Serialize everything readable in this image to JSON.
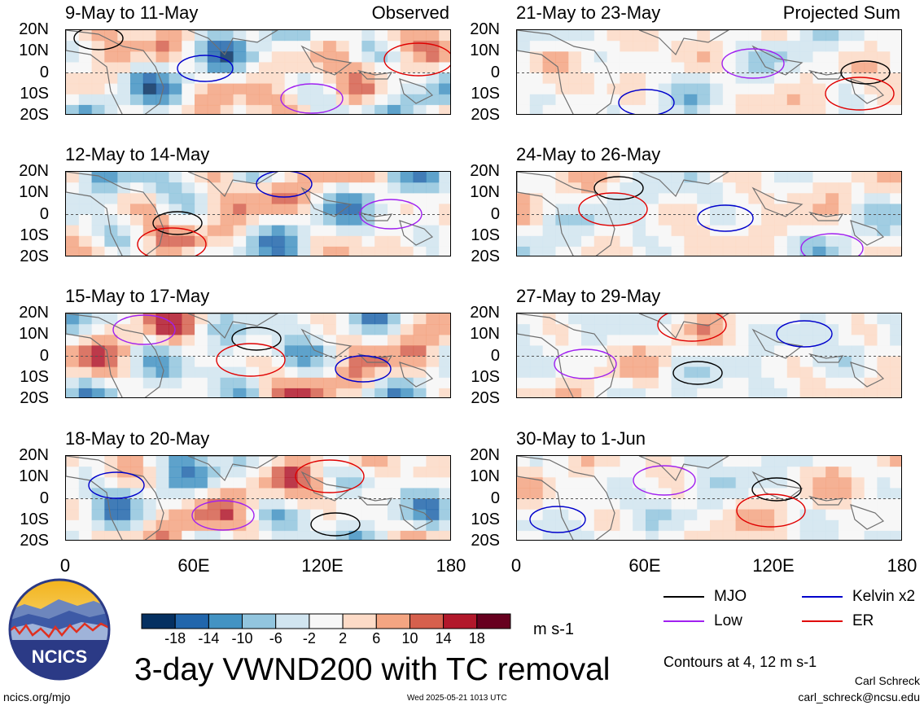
{
  "panels": [
    {
      "id": "obs1",
      "title": "9-May to 11-May",
      "corner_label": "Observed"
    },
    {
      "id": "obs2",
      "title": "12-May to 14-May",
      "corner_label": ""
    },
    {
      "id": "obs3",
      "title": "15-May to 17-May",
      "corner_label": ""
    },
    {
      "id": "obs4",
      "title": "18-May to 20-May",
      "corner_label": ""
    },
    {
      "id": "prj1",
      "title": "21-May to 23-May",
      "corner_label": "Projected Sum"
    },
    {
      "id": "prj2",
      "title": "24-May to 26-May",
      "corner_label": ""
    },
    {
      "id": "prj3",
      "title": "27-May to 29-May",
      "corner_label": ""
    },
    {
      "id": "prj4",
      "title": "30-May to 1-Jun",
      "corner_label": ""
    }
  ],
  "latitude_labels": [
    "20N",
    "10N",
    "0",
    "10S",
    "20S"
  ],
  "longitude_labels": [
    "0",
    "60E",
    "120E",
    "180"
  ],
  "chart_data": {
    "type": "heatmap",
    "title": "3-day VWND200 with TC removal",
    "variable": "VWND200",
    "units": "m s-1",
    "x_range": [
      0,
      180
    ],
    "y_range": [
      -20,
      20
    ],
    "colorbar": {
      "tick_labels": [
        "-18",
        "-14",
        "-10",
        "-6",
        "-2",
        "2",
        "6",
        "10",
        "14",
        "18"
      ],
      "levels": [
        -18,
        -14,
        -10,
        -6,
        -2,
        2,
        6,
        10,
        14,
        18
      ],
      "colors": [
        "#053061",
        "#2166ac",
        "#4393c3",
        "#92c5de",
        "#d1e5f0",
        "#f7f7f7",
        "#fddbc7",
        "#f4a582",
        "#d6604d",
        "#b2182b",
        "#67001f"
      ]
    },
    "contour_note": "Contours at 4, 12 m s-1",
    "contour_legend": [
      {
        "name": "MJO",
        "color": "#000000"
      },
      {
        "name": "Kelvin x2",
        "color": "#0000cc"
      },
      {
        "name": "Low",
        "color": "#a020f0"
      },
      {
        "name": "ER",
        "color": "#e00000"
      }
    ]
  },
  "footer": {
    "url": "ncics.org/mjo",
    "timestamp": "Wed 2025-05-21 1013 UTC",
    "author": "Carl Schreck",
    "email": "carl_schreck@ncsu.edu",
    "logo_text": "NCICS"
  }
}
